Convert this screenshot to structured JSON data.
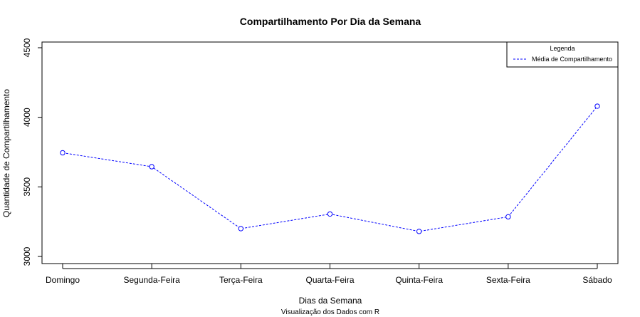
{
  "chart_data": {
    "type": "line",
    "title": "Compartilhamento Por Dia da Semana",
    "xlabel": "Dias da Semana",
    "ylabel": "Quantidade de Compartilhamento",
    "subtitle": "Visualização dos Dados com R",
    "categories": [
      "Domingo",
      "Segunda-Feira",
      "Terça-Feira",
      "Quarta-Feira",
      "Quinta-Feira",
      "Sexta-Feira",
      "Sábado"
    ],
    "series": [
      {
        "name": "Média de Compartilhamento",
        "values": [
          3745,
          3645,
          3200,
          3305,
          3180,
          3285,
          4080
        ],
        "color": "#0000ff",
        "line_style": "dashed",
        "marker": "open-circle"
      }
    ],
    "ylim": [
      3000,
      4500
    ],
    "yticks": [
      "3000",
      "3500",
      "4000",
      "4500"
    ],
    "legend": {
      "title": "Legenda",
      "position": "top-right"
    },
    "grid": false
  }
}
